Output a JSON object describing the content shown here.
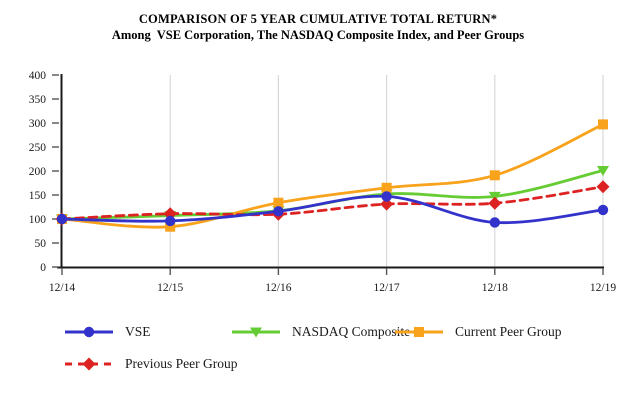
{
  "title": {
    "line1": "COMPARISON OF 5 YEAR CUMULATIVE TOTAL RETURN*",
    "line2": "Among  VSE Corporation, The NASDAQ Composite Index, and Peer Groups"
  },
  "chart_data": {
    "type": "line",
    "title": "COMPARISON OF 5 YEAR CUMULATIVE TOTAL RETURN*",
    "subtitle": "Among  VSE Corporation, The NASDAQ Composite Index, and Peer Groups",
    "categories": [
      "12/14",
      "12/15",
      "12/16",
      "12/17",
      "12/18",
      "12/19"
    ],
    "series": [
      {
        "name": "VSE",
        "color": "#3333cc",
        "marker": "circle",
        "dashed": false,
        "values": [
          100,
          96,
          116,
          147,
          93,
          119
        ]
      },
      {
        "name": "NASDAQ Composite",
        "color": "#66cc33",
        "marker": "triangle-down",
        "dashed": false,
        "values": [
          100,
          107,
          117,
          152,
          147,
          201
        ]
      },
      {
        "name": "Current Peer Group",
        "color": "#f9a21b",
        "marker": "square",
        "dashed": false,
        "values": [
          100,
          84,
          134,
          165,
          191,
          297
        ]
      },
      {
        "name": "Previous Peer Group",
        "color": "#dd2222",
        "marker": "diamond",
        "dashed": true,
        "values": [
          100,
          111,
          110,
          131,
          133,
          167
        ]
      }
    ],
    "y_ticks": [
      0,
      50,
      100,
      150,
      200,
      250,
      300,
      350,
      400
    ],
    "ylim": [
      0,
      400
    ],
    "xlabel": "",
    "ylabel": "",
    "grid": "vertical-only",
    "grid_color": "#d9d9d9",
    "axis_color": "#1a1a1a",
    "legend_position": "bottom"
  }
}
